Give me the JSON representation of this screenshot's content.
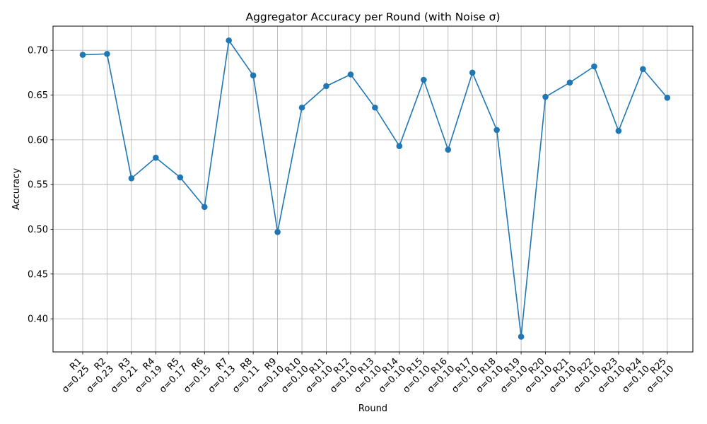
{
  "chart_data": {
    "type": "line",
    "title": "Aggregator Accuracy per Round (with Noise σ)",
    "xlabel": "Round",
    "ylabel": "Accuracy",
    "ylim": [
      0.363,
      0.727
    ],
    "yticks": [
      "0.40",
      "0.45",
      "0.50",
      "0.55",
      "0.60",
      "0.65",
      "0.70"
    ],
    "ytick_values": [
      0.4,
      0.45,
      0.5,
      0.55,
      0.6,
      0.65,
      0.7
    ],
    "grid": true,
    "legend": "none",
    "series_color": "#1f77b4",
    "categories": [
      {
        "round": "R1",
        "sigma": "σ=0.25"
      },
      {
        "round": "R2",
        "sigma": "σ=0.23"
      },
      {
        "round": "R3",
        "sigma": "σ=0.21"
      },
      {
        "round": "R4",
        "sigma": "σ=0.19"
      },
      {
        "round": "R5",
        "sigma": "σ=0.17"
      },
      {
        "round": "R6",
        "sigma": "σ=0.15"
      },
      {
        "round": "R7",
        "sigma": "σ=0.13"
      },
      {
        "round": "R8",
        "sigma": "σ=0.11"
      },
      {
        "round": "R9",
        "sigma": "σ=0.10"
      },
      {
        "round": "R10",
        "sigma": "σ=0.10"
      },
      {
        "round": "R11",
        "sigma": "σ=0.10"
      },
      {
        "round": "R12",
        "sigma": "σ=0.10"
      },
      {
        "round": "R13",
        "sigma": "σ=0.10"
      },
      {
        "round": "R14",
        "sigma": "σ=0.10"
      },
      {
        "round": "R15",
        "sigma": "σ=0.10"
      },
      {
        "round": "R16",
        "sigma": "σ=0.10"
      },
      {
        "round": "R17",
        "sigma": "σ=0.10"
      },
      {
        "round": "R18",
        "sigma": "σ=0.10"
      },
      {
        "round": "R19",
        "sigma": "σ=0.10"
      },
      {
        "round": "R20",
        "sigma": "σ=0.10"
      },
      {
        "round": "R21",
        "sigma": "σ=0.10"
      },
      {
        "round": "R22",
        "sigma": "σ=0.10"
      },
      {
        "round": "R23",
        "sigma": "σ=0.10"
      },
      {
        "round": "R24",
        "sigma": "σ=0.10"
      },
      {
        "round": "R25",
        "sigma": "σ=0.10"
      }
    ],
    "values": [
      0.695,
      0.696,
      0.557,
      0.58,
      0.558,
      0.525,
      0.711,
      0.672,
      0.497,
      0.636,
      0.66,
      0.673,
      0.636,
      0.593,
      0.667,
      0.589,
      0.675,
      0.611,
      0.38,
      0.648,
      0.664,
      0.682,
      0.61,
      0.679,
      0.647
    ]
  }
}
